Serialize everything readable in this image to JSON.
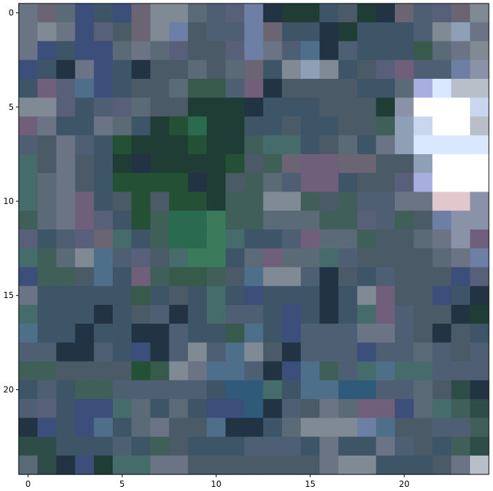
{
  "chart_data": {
    "type": "heatmap",
    "title": "",
    "xlabel": "",
    "ylabel": "",
    "rows": 25,
    "cols": 25,
    "xlim": [
      -0.5,
      24.5
    ],
    "ylim": [
      24.5,
      -0.5
    ],
    "grid": false,
    "legend": "none",
    "x_ticks": [
      0,
      5,
      10,
      15,
      20
    ],
    "y_ticks": [
      0,
      5,
      10,
      15,
      20
    ],
    "x_tick_labels": [
      "0",
      "5",
      "10",
      "15",
      "20"
    ],
    "y_tick_labels": [
      "0",
      "5",
      "10",
      "15",
      "20"
    ],
    "frame_color": "#000000",
    "palette": {
      "a": "#4a5a66",
      "b": "#3d5566",
      "c": "#4f5f73",
      "d": "#3f5f58",
      "e": "#2f4d48",
      "f": "#5a6a77",
      "g": "#6a7484",
      "h": "#3c4e7a",
      "i": "#2f5a7a",
      "j": "#586079",
      "k": "#466b6b",
      "l": "#6b6573",
      "m": "#7f8a94",
      "n": "#375a4a",
      "o": "#245035",
      "p": "#1f3d35",
      "q": "#2a6a4e",
      "r": "#3b7a5a",
      "s": "#556b73",
      "t": "#6e7fa6",
      "u": "#8a92a8",
      "v": "#6f5f7a",
      "w": "#223344",
      "x": "#4e6f8a",
      "y": "#8fa0b6",
      "W": "#ffffff",
      "L": "#d9e8ff",
      "P": "#c9d6f0",
      "V": "#a8aee0",
      "R": "#e2c8cc",
      "Z": "#b9bfc9"
    },
    "rows_data": [
      "glfhbhlmmfcjtwppbapwlcjlm",
      "gmghjalmtacctlbbwpbbbcmyg",
      "ghbhhfgfjaajtgcxwcbbbnfgm",
      "hbwghbwaafaflbmymbajvcctu",
      "bvjxhbaafnncvwaaaabbfVLZZ",
      "mmjbcjfaapppwbbbaaapuWWWP",
      "vgbbgfbpoqppbbabbaadyPWWZ",
      "cagcbopppoppdkkbafbgyLLLL",
      "kagabpwppppoadlvvllaayWWW",
      "kfgaboooowpadfcvvbaajVWWW",
      "kfgvbaoaoopddmmdadccggRRu",
      "dfgvjbodqqrddfffddjcdatuu",
      "jbcjlkbdqqrkbbcvffdaafguv",
      "kdfmxcjakrrbfvffkcaaaafgt",
      "hddaxbvdnndaxmmcwabcaaahj",
      "gbbbbbnbabkbhbbbwbmvaahbw",
      "kbbbwbacwbkccbhbwbkvcaawp",
      "xbbwbbwwcbbnxbhcccggcawab",
      "ccwwcbhwcmcxmawccchccfcac",
      "ddaaaaonmgxxcwhxdckxkkccc",
      "bcbddcccccbiikbxxiiccfaew",
      "cjbhhkfbfbhhiwcagfvvhfkde",
      "whbhxbfgaaxwwbfmmmtxaaccd",
      "eebbbcbdabbbcccbgbbgcabde",
      "fewhpkkggaaaaaaagmmbbbagZ"
    ]
  }
}
